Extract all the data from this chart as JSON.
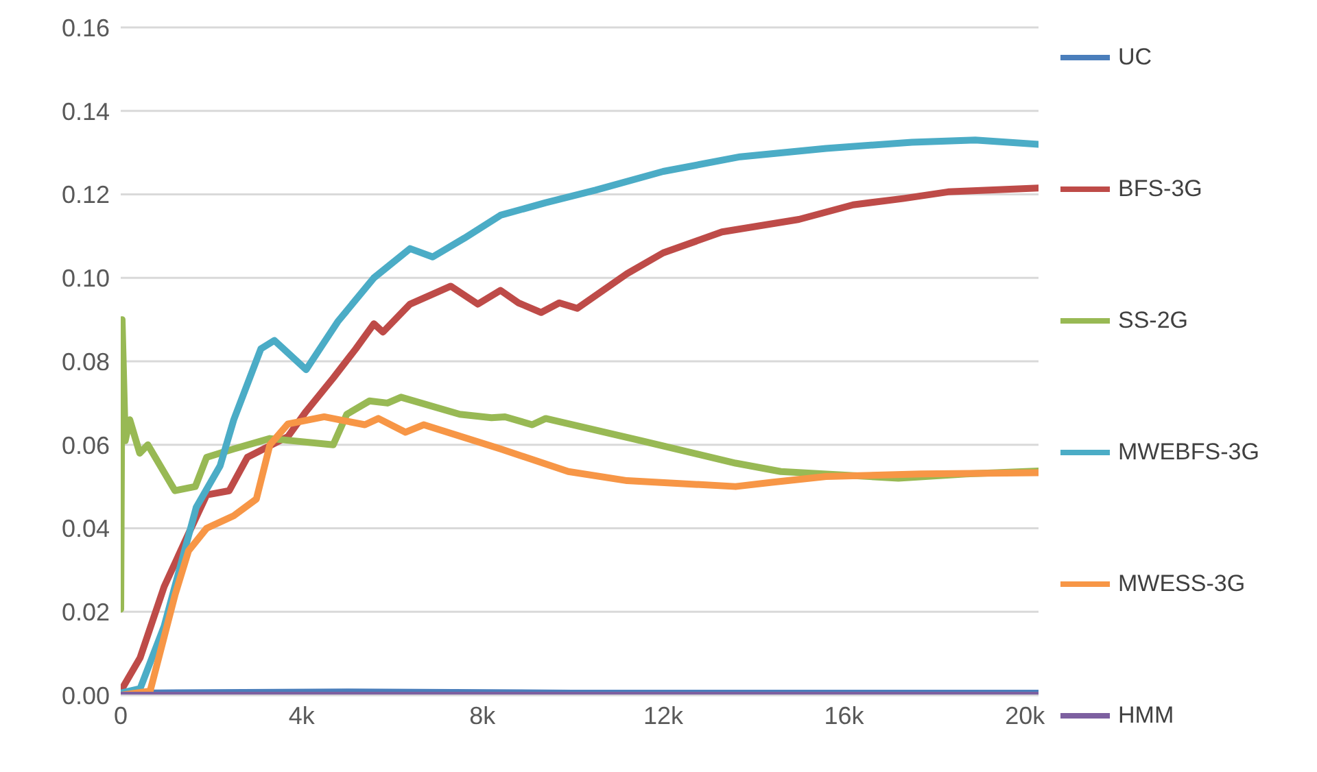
{
  "chart_data": {
    "type": "line",
    "xlim": [
      0,
      20300
    ],
    "xticks": [
      0,
      {
        "value": 4000,
        "label": "4k"
      },
      {
        "value": 8000,
        "label": "8k"
      },
      {
        "value": 12000,
        "label": "12k"
      },
      {
        "value": 16000,
        "label": "16k"
      },
      {
        "value": 20000,
        "label": "20k"
      }
    ],
    "ylim": [
      0,
      0.16
    ],
    "yticks": [
      {
        "value": 0,
        "label": "0.00"
      },
      {
        "value": 0.02,
        "label": "0.02"
      },
      {
        "value": 0.04,
        "label": "0.04"
      },
      {
        "value": 0.06,
        "label": "0.06"
      },
      {
        "value": 0.08,
        "label": "0.08"
      },
      {
        "value": 0.1,
        "label": "0.10"
      },
      {
        "value": 0.12,
        "label": "0.12"
      },
      {
        "value": 0.14,
        "label": "0.14"
      },
      {
        "value": 0.16,
        "label": "0.16"
      }
    ],
    "grid": "y",
    "legend": "right",
    "marker": "none",
    "line_style": "solid",
    "series": [
      {
        "name": "UC",
        "color": "#4a7ebb",
        "x": [
          0,
          300,
          5000,
          10000,
          20300
        ],
        "values": [
          0.001,
          0.0005,
          0.0008,
          0.0005,
          0.0005
        ]
      },
      {
        "name": "BFS-3G",
        "color": "#be4b48",
        "x": [
          0,
          430,
          960,
          1500,
          1900,
          2400,
          2800,
          3700,
          4100,
          4700,
          5200,
          5600,
          5800,
          6400,
          7300,
          7900,
          8400,
          8800,
          9300,
          9700,
          10100,
          11200,
          12000,
          13300,
          15000,
          16200,
          17300,
          18300,
          20300
        ],
        "values": [
          0.001,
          0.009,
          0.026,
          0.0387,
          0.048,
          0.049,
          0.057,
          0.062,
          0.068,
          0.076,
          0.083,
          0.089,
          0.087,
          0.0937,
          0.098,
          0.0937,
          0.097,
          0.094,
          0.0917,
          0.094,
          0.0927,
          0.101,
          0.106,
          0.111,
          0.114,
          0.1175,
          0.119,
          0.1206,
          0.1215
        ]
      },
      {
        "name": "SS-2G",
        "color": "#98b954",
        "x": [
          0,
          30,
          100,
          200,
          420,
          600,
          1200,
          1650,
          1900,
          2500,
          3300,
          4700,
          5000,
          5500,
          5900,
          6200,
          7500,
          8200,
          8500,
          9100,
          9400,
          11500,
          13600,
          14600,
          17200,
          18700,
          20300
        ],
        "values": [
          0.0206,
          0.09,
          0.061,
          0.066,
          0.058,
          0.06,
          0.049,
          0.05,
          0.057,
          0.059,
          0.0615,
          0.06,
          0.0673,
          0.0705,
          0.07,
          0.0714,
          0.0673,
          0.0665,
          0.0667,
          0.0648,
          0.0663,
          0.061,
          0.0556,
          0.0536,
          0.052,
          0.053,
          0.0537
        ]
      },
      {
        "name": "MWEBFS-3G",
        "color": "#4bacc6",
        "x": [
          0,
          430,
          960,
          1670,
          2200,
          2500,
          3100,
          3400,
          4100,
          4800,
          5600,
          6400,
          6900,
          7600,
          8400,
          9400,
          10500,
          12000,
          13700,
          15600,
          17500,
          18900,
          20300
        ],
        "values": [
          0.0005,
          0.0016,
          0.0165,
          0.045,
          0.055,
          0.066,
          0.083,
          0.085,
          0.078,
          0.0895,
          0.1,
          0.107,
          0.105,
          0.1095,
          0.115,
          0.118,
          0.121,
          0.1255,
          0.129,
          0.131,
          0.1325,
          0.133,
          0.132
        ]
      },
      {
        "name": "MWESS-3G",
        "color": "#f79646",
        "x": [
          0,
          650,
          1200,
          1500,
          1900,
          2500,
          3000,
          3300,
          3700,
          4500,
          5400,
          5700,
          6300,
          6700,
          8400,
          9900,
          11200,
          13600,
          14400,
          15600,
          17700,
          20300
        ],
        "values": [
          0,
          0.001,
          0.024,
          0.0346,
          0.04,
          0.043,
          0.047,
          0.06,
          0.065,
          0.0667,
          0.0648,
          0.0663,
          0.063,
          0.0648,
          0.059,
          0.0536,
          0.0514,
          0.05,
          0.051,
          0.0524,
          0.053,
          0.0533
        ]
      },
      {
        "name": "HMM",
        "color": "#7d60a0",
        "x": [
          0,
          20300
        ],
        "values": [
          0,
          0
        ]
      }
    ]
  }
}
